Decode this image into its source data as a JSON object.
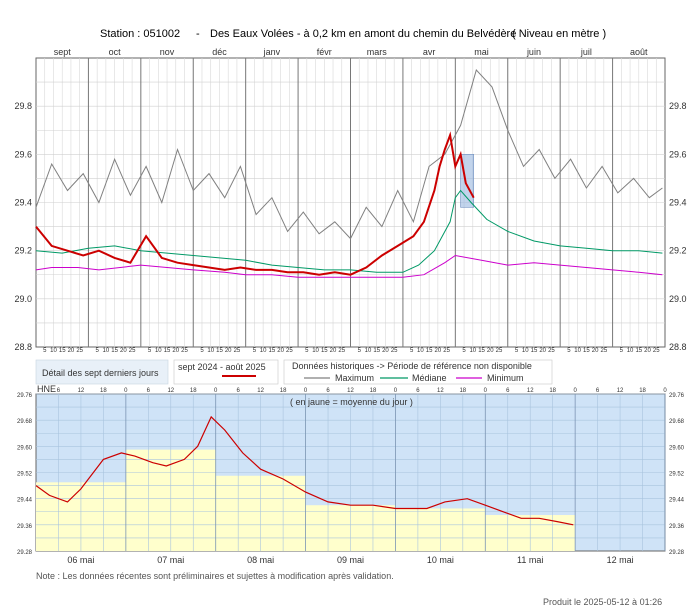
{
  "header": {
    "station": "Station : 051002",
    "dash": "-",
    "description": "Des Eaux Volées - à 0,2 km en amont du chemin du Belvédère",
    "unit_label": "( Niveau en mètre )"
  },
  "legend": {
    "recent_detail": "Détail des sept derniers jours",
    "period": "sept 2024 - août 2025",
    "historic_title": "Données historiques -> Période de référence non disponible",
    "maximum": "Maximum",
    "median": "Médiane",
    "minimum": "Minimum"
  },
  "note": "Note : Les données récentes sont préliminaires et sujettes à modification après validation.",
  "produced": "Produit le 2025-05-12 à 01:26",
  "colors": {
    "current": "#cc0000",
    "maximum": "#808080",
    "median": "#009966",
    "minimum": "#cc00cc",
    "recent_bg": "#cfe3f7",
    "above_mean": "#ffffcc",
    "week_highlight": "#9ab8e0"
  },
  "chart_data": [
    {
      "type": "line",
      "ylim": [
        28.8,
        30.0
      ],
      "yticks": [
        "28.8",
        "29.0",
        "29.2",
        "29.4",
        "29.6",
        "29.8"
      ],
      "months": [
        "sept",
        "oct",
        "nov",
        "déc",
        "janv",
        "févr",
        "mars",
        "avr",
        "mai",
        "juin",
        "juil",
        "août"
      ],
      "day_ticks": [
        "5",
        "10",
        "15",
        "20",
        "25"
      ],
      "grid": true,
      "series": [
        {
          "name": "Maximum",
          "key": "max",
          "x": [
            0,
            0.3,
            0.6,
            0.9,
            1.2,
            1.5,
            1.8,
            2.1,
            2.4,
            2.7,
            3.0,
            3.3,
            3.6,
            3.9,
            4.2,
            4.5,
            4.8,
            5.1,
            5.4,
            5.7,
            6.0,
            6.3,
            6.6,
            6.9,
            7.2,
            7.5,
            7.8,
            8.1,
            8.4,
            8.7,
            9.0,
            9.3,
            9.6,
            9.9,
            10.2,
            10.5,
            10.8,
            11.1,
            11.4,
            11.7,
            11.95
          ],
          "y": [
            29.38,
            29.56,
            29.45,
            29.52,
            29.4,
            29.58,
            29.43,
            29.55,
            29.4,
            29.62,
            29.45,
            29.52,
            29.42,
            29.55,
            29.35,
            29.42,
            29.28,
            29.36,
            29.27,
            29.32,
            29.25,
            29.38,
            29.3,
            29.45,
            29.32,
            29.55,
            29.6,
            29.72,
            29.95,
            29.88,
            29.7,
            29.55,
            29.62,
            29.5,
            29.58,
            29.46,
            29.55,
            29.44,
            29.5,
            29.42,
            29.46
          ]
        },
        {
          "name": "Médiane",
          "key": "med",
          "x": [
            0,
            0.5,
            1.0,
            1.5,
            2.0,
            2.5,
            3.0,
            3.5,
            4.0,
            4.5,
            5.0,
            5.5,
            6.0,
            6.5,
            7.0,
            7.3,
            7.6,
            7.9,
            8.0,
            8.1,
            8.3,
            8.6,
            9.0,
            9.5,
            10.0,
            10.5,
            11.0,
            11.5,
            11.95
          ],
          "y": [
            29.2,
            29.19,
            29.21,
            29.22,
            29.2,
            29.19,
            29.18,
            29.17,
            29.16,
            29.14,
            29.13,
            29.12,
            29.12,
            29.11,
            29.11,
            29.14,
            29.2,
            29.32,
            29.42,
            29.45,
            29.4,
            29.33,
            29.28,
            29.24,
            29.22,
            29.21,
            29.2,
            29.2,
            29.19
          ]
        },
        {
          "name": "Minimum",
          "key": "min",
          "x": [
            0,
            0.3,
            0.8,
            1.2,
            2.0,
            3.0,
            3.6,
            4.0,
            4.5,
            5.0,
            6.0,
            7.0,
            7.4,
            7.8,
            8.0,
            8.5,
            9.0,
            9.5,
            10.0,
            10.5,
            11.0,
            11.5,
            11.95
          ],
          "y": [
            29.12,
            29.13,
            29.13,
            29.12,
            29.14,
            29.12,
            29.11,
            29.1,
            29.1,
            29.09,
            29.09,
            29.09,
            29.1,
            29.15,
            29.18,
            29.16,
            29.14,
            29.15,
            29.14,
            29.13,
            29.12,
            29.11,
            29.1
          ]
        },
        {
          "name": "sept 2024 - août 2025",
          "key": "cur",
          "x": [
            0,
            0.3,
            0.6,
            0.9,
            1.2,
            1.5,
            1.8,
            2.1,
            2.4,
            2.7,
            3.0,
            3.3,
            3.6,
            3.9,
            4.2,
            4.5,
            4.8,
            5.1,
            5.4,
            5.7,
            6.0,
            6.3,
            6.6,
            6.9,
            7.2,
            7.4,
            7.6,
            7.7,
            7.8,
            7.9,
            8.0,
            8.1,
            8.2,
            8.35
          ],
          "y": [
            29.3,
            29.22,
            29.2,
            29.18,
            29.2,
            29.17,
            29.15,
            29.26,
            29.17,
            29.15,
            29.14,
            29.13,
            29.12,
            29.13,
            29.12,
            29.12,
            29.11,
            29.11,
            29.1,
            29.11,
            29.1,
            29.13,
            29.18,
            29.22,
            29.26,
            29.32,
            29.45,
            29.55,
            29.62,
            29.68,
            29.55,
            29.6,
            29.48,
            29.42
          ]
        }
      ]
    },
    {
      "type": "line",
      "title": "( en jaune = moyenne du jour )",
      "ylim": [
        29.28,
        29.76
      ],
      "yticks": [
        "29.28",
        "29.36",
        "29.44",
        "29.52",
        "29.60",
        "29.68",
        "29.76"
      ],
      "hne_label": "HNE",
      "hour_ticks": [
        "6",
        "12",
        "18",
        "0"
      ],
      "days": [
        "06 mai",
        "07 mai",
        "08 mai",
        "09 mai",
        "10 mai",
        "11 mai",
        "12 mai"
      ],
      "daily_mean": [
        29.49,
        29.59,
        29.51,
        29.42,
        29.41,
        29.39,
        null
      ],
      "series": [
        {
          "name": "Niveau",
          "key": "cur",
          "x": [
            0,
            0.15,
            0.35,
            0.5,
            0.75,
            0.95,
            1.1,
            1.3,
            1.45,
            1.65,
            1.8,
            1.95,
            2.1,
            2.3,
            2.5,
            2.75,
            3.0,
            3.25,
            3.5,
            3.75,
            4.0,
            4.2,
            4.35,
            4.55,
            4.8,
            5.0,
            5.2,
            5.4,
            5.6,
            5.8,
            5.98
          ],
          "y": [
            29.48,
            29.45,
            29.43,
            29.47,
            29.56,
            29.58,
            29.57,
            29.55,
            29.54,
            29.56,
            29.6,
            29.69,
            29.65,
            29.58,
            29.53,
            29.5,
            29.46,
            29.43,
            29.42,
            29.42,
            29.41,
            29.41,
            29.41,
            29.43,
            29.44,
            29.42,
            29.4,
            29.38,
            29.38,
            29.37,
            29.36
          ]
        }
      ]
    }
  ]
}
